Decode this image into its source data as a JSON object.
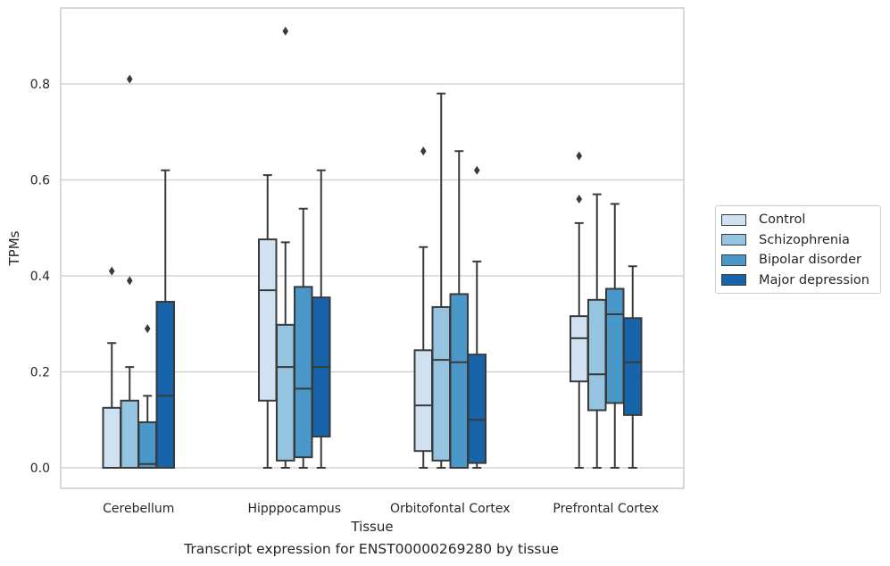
{
  "chart_data": {
    "type": "box",
    "title": "Transcript expression for ENST00000269280 by tissue",
    "xlabel": "Tissue",
    "ylabel": "TPMs",
    "ylim": [
      -0.044,
      0.955
    ],
    "yticks": [
      "0.0",
      "0.2",
      "0.4",
      "0.6",
      "0.8"
    ],
    "ytick_values": [
      0.0,
      0.2,
      0.4,
      0.6,
      0.8
    ],
    "grid": "horizontal",
    "legend_position": "right",
    "categories": [
      "Cerebellum",
      "Hipppocampus",
      "Orbitofontal Cortex",
      "Prefrontal Cortex"
    ],
    "series": [
      {
        "name": "Control",
        "color": "#d0e1f2",
        "boxes": [
          {
            "whisker_low": 0.0,
            "q1": 0.0,
            "median": 0.0,
            "q3": 0.125,
            "whisker_high": 0.26,
            "outliers": [
              0.41
            ]
          },
          {
            "whisker_low": 0.0,
            "q1": 0.14,
            "median": 0.37,
            "q3": 0.476,
            "whisker_high": 0.61,
            "outliers": []
          },
          {
            "whisker_low": 0.0,
            "q1": 0.035,
            "median": 0.13,
            "q3": 0.245,
            "whisker_high": 0.46,
            "outliers": [
              0.66
            ]
          },
          {
            "whisker_low": 0.0,
            "q1": 0.18,
            "median": 0.27,
            "q3": 0.316,
            "whisker_high": 0.51,
            "outliers": [
              0.56,
              0.65
            ]
          }
        ]
      },
      {
        "name": "Schizophrenia",
        "color": "#94c4df",
        "boxes": [
          {
            "whisker_low": 0.0,
            "q1": 0.0,
            "median": 0.0,
            "q3": 0.14,
            "whisker_high": 0.21,
            "outliers": [
              0.39,
              0.81
            ]
          },
          {
            "whisker_low": 0.0,
            "q1": 0.015,
            "median": 0.21,
            "q3": 0.298,
            "whisker_high": 0.47,
            "outliers": [
              0.91
            ]
          },
          {
            "whisker_low": 0.0,
            "q1": 0.015,
            "median": 0.225,
            "q3": 0.335,
            "whisker_high": 0.78,
            "outliers": []
          },
          {
            "whisker_low": 0.0,
            "q1": 0.12,
            "median": 0.195,
            "q3": 0.35,
            "whisker_high": 0.57,
            "outliers": []
          }
        ]
      },
      {
        "name": "Bipolar disorder",
        "color": "#4a98c9",
        "boxes": [
          {
            "whisker_low": 0.0,
            "q1": 0.0,
            "median": 0.008,
            "q3": 0.095,
            "whisker_high": 0.15,
            "outliers": [
              0.29
            ]
          },
          {
            "whisker_low": 0.0,
            "q1": 0.022,
            "median": 0.165,
            "q3": 0.377,
            "whisker_high": 0.54,
            "outliers": []
          },
          {
            "whisker_low": 0.0,
            "q1": 0.0,
            "median": 0.22,
            "q3": 0.362,
            "whisker_high": 0.66,
            "outliers": []
          },
          {
            "whisker_low": 0.0,
            "q1": 0.135,
            "median": 0.32,
            "q3": 0.373,
            "whisker_high": 0.55,
            "outliers": []
          }
        ]
      },
      {
        "name": "Major depression",
        "color": "#1764ab",
        "boxes": [
          {
            "whisker_low": 0.0,
            "q1": 0.0,
            "median": 0.15,
            "q3": 0.346,
            "whisker_high": 0.62,
            "outliers": []
          },
          {
            "whisker_low": 0.0,
            "q1": 0.065,
            "median": 0.21,
            "q3": 0.355,
            "whisker_high": 0.62,
            "outliers": []
          },
          {
            "whisker_low": 0.0,
            "q1": 0.01,
            "median": 0.1,
            "q3": 0.236,
            "whisker_high": 0.43,
            "outliers": [
              0.62
            ]
          },
          {
            "whisker_low": 0.0,
            "q1": 0.11,
            "median": 0.22,
            "q3": 0.312,
            "whisker_high": 0.42,
            "outliers": []
          }
        ]
      }
    ]
  }
}
